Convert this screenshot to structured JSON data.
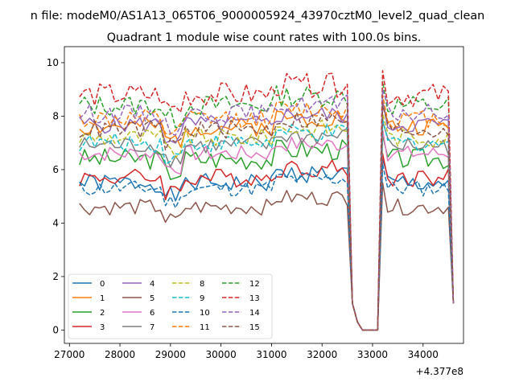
{
  "chart_data": {
    "type": "line",
    "suptitle": "n file: modeM0/AS1A13_065T06_9000005924_43970cztM0_level2_quad_clean",
    "title": "Quadrant 1 module wise count rates with 100.0s bins.",
    "xlabel": "",
    "ylabel": "",
    "x_offset_label": "+4.377e8",
    "xlim": [
      26900,
      34800
    ],
    "ylim": [
      -0.5,
      10.6
    ],
    "xticks": [
      27000,
      28000,
      29000,
      30000,
      31000,
      32000,
      33000,
      34000
    ],
    "xtick_labels": [
      "27000",
      "28000",
      "29000",
      "30000",
      "31000",
      "32000",
      "33000",
      "34000"
    ],
    "yticks": [
      0,
      2,
      4,
      6,
      8,
      10
    ],
    "ytick_labels": [
      "0",
      "2",
      "4",
      "6",
      "8",
      "10"
    ],
    "grid": false,
    "legend_position": "lower-left",
    "segment_a": {
      "x_start": 27200,
      "x_end": 32500,
      "points": 54
    },
    "drop_x": [
      32600,
      32700,
      32800,
      32900,
      33000,
      33100
    ],
    "drop_y": [
      1.0,
      0.3,
      0.0,
      0.0,
      0.0,
      0.0
    ],
    "segment_b": {
      "x_start": 33200,
      "x_end": 34500,
      "points": 14
    },
    "end_point": {
      "x": 34600,
      "y": 1.0
    },
    "series": [
      {
        "name": "0",
        "color": "#1f77b4",
        "dashed": false,
        "base": 5.5,
        "amp": 0.35,
        "seed": 1
      },
      {
        "name": "1",
        "color": "#ff7f0e",
        "dashed": false,
        "base": 7.6,
        "amp": 0.35,
        "seed": 2
      },
      {
        "name": "2",
        "color": "#2ca02c",
        "dashed": false,
        "base": 6.4,
        "amp": 0.4,
        "seed": 3
      },
      {
        "name": "3",
        "color": "#d62728",
        "dashed": false,
        "base": 5.7,
        "amp": 0.35,
        "seed": 4
      },
      {
        "name": "4",
        "color": "#9467bd",
        "dashed": false,
        "base": 7.7,
        "amp": 0.35,
        "seed": 5
      },
      {
        "name": "5",
        "color": "#8c564b",
        "dashed": false,
        "base": 4.6,
        "amp": 0.3,
        "seed": 6
      },
      {
        "name": "6",
        "color": "#e377c2",
        "dashed": false,
        "base": 6.6,
        "amp": 0.3,
        "seed": 7
      },
      {
        "name": "7",
        "color": "#7f7f7f",
        "dashed": false,
        "base": 6.9,
        "amp": 0.35,
        "seed": 8
      },
      {
        "name": "8",
        "color": "#bcbd22",
        "dashed": true,
        "base": 7.2,
        "amp": 0.35,
        "seed": 9
      },
      {
        "name": "9",
        "color": "#17becf",
        "dashed": true,
        "base": 7.0,
        "amp": 0.35,
        "seed": 10
      },
      {
        "name": "10",
        "color": "#1f77b4",
        "dashed": true,
        "base": 5.3,
        "amp": 0.3,
        "seed": 11
      },
      {
        "name": "11",
        "color": "#ff7f0e",
        "dashed": true,
        "base": 7.9,
        "amp": 0.35,
        "seed": 12
      },
      {
        "name": "12",
        "color": "#2ca02c",
        "dashed": true,
        "base": 8.4,
        "amp": 0.4,
        "seed": 13
      },
      {
        "name": "13",
        "color": "#d62728",
        "dashed": true,
        "base": 8.8,
        "amp": 0.45,
        "seed": 14
      },
      {
        "name": "14",
        "color": "#9467bd",
        "dashed": true,
        "base": 8.1,
        "amp": 0.35,
        "seed": 15
      },
      {
        "name": "15",
        "color": "#8c564b",
        "dashed": true,
        "base": 7.5,
        "amp": 0.35,
        "seed": 16
      }
    ]
  }
}
